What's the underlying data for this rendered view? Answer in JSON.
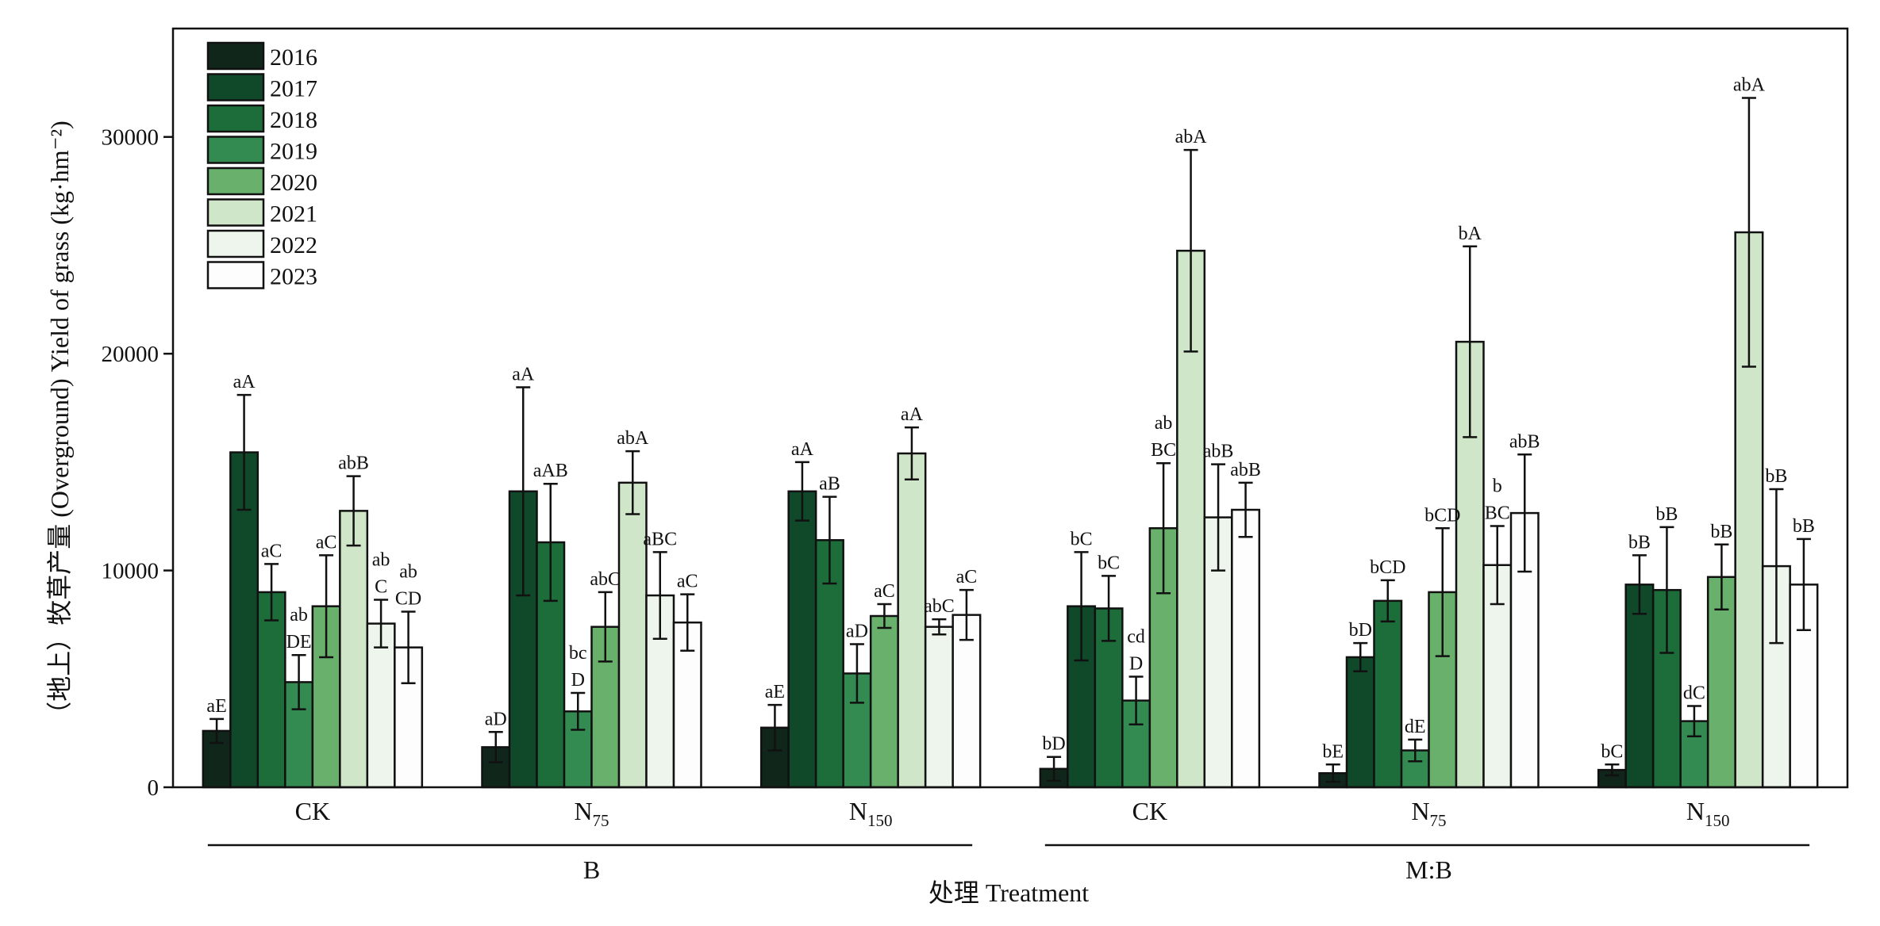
{
  "chart_data": {
    "type": "bar",
    "ylabel": "（地上）牧草产量 (Overground) Yield of grass (kg·hm⁻²)",
    "xlabel": "处理 Treatment",
    "ylim": [
      0,
      35000
    ],
    "yticks": [
      0,
      10000,
      20000,
      30000
    ],
    "grid": false,
    "legend_position": "top-left",
    "categories": [
      {
        "main": "CK",
        "sub": ""
      },
      {
        "main": "N",
        "sub": "75"
      },
      {
        "main": "N",
        "sub": "150"
      },
      {
        "main": "CK",
        "sub": ""
      },
      {
        "main": "N",
        "sub": "75"
      },
      {
        "main": "N",
        "sub": "150"
      }
    ],
    "groups": [
      {
        "label": "B",
        "from": 0,
        "to": 2
      },
      {
        "label": "M:B",
        "from": 3,
        "to": 5
      }
    ],
    "series": [
      {
        "name": "2016",
        "color": "#11261a",
        "values": [
          2600,
          1850,
          2750,
          850,
          650,
          800
        ],
        "errors": [
          550,
          700,
          1050,
          550,
          400,
          250
        ],
        "labels": [
          [
            "aE"
          ],
          [
            "aD"
          ],
          [
            "aE"
          ],
          [
            "bD"
          ],
          [
            "bE"
          ],
          [
            "bC"
          ]
        ]
      },
      {
        "name": "2017",
        "color": "#10482a",
        "values": [
          15450,
          13650,
          13650,
          8350,
          6000,
          9350
        ],
        "errors": [
          2650,
          4800,
          1350,
          2500,
          650,
          1350
        ],
        "labels": [
          [
            "aA"
          ],
          [
            "aA"
          ],
          [
            "aA"
          ],
          [
            "bC"
          ],
          [
            "bD"
          ],
          [
            "bB"
          ]
        ]
      },
      {
        "name": "2018",
        "color": "#1d6d3b",
        "values": [
          9000,
          11300,
          11400,
          8250,
          8600,
          9100
        ],
        "errors": [
          1300,
          2700,
          2000,
          1500,
          950,
          2900
        ],
        "labels": [
          [
            "aC"
          ],
          [
            "aAB"
          ],
          [
            "aB"
          ],
          [
            "bC"
          ],
          [
            "bCD"
          ],
          [
            "bB"
          ]
        ]
      },
      {
        "name": "2019",
        "color": "#338b52",
        "values": [
          4850,
          3500,
          5250,
          4000,
          1700,
          3050
        ],
        "errors": [
          1250,
          850,
          1350,
          1100,
          500,
          700
        ],
        "labels": [
          [
            "ab",
            "DE"
          ],
          [
            "bc",
            "D"
          ],
          [
            "aD"
          ],
          [
            "cd",
            "D"
          ],
          [
            "dE"
          ],
          [
            "dC"
          ]
        ]
      },
      {
        "name": "2020",
        "color": "#69b06c",
        "values": [
          8350,
          7400,
          7900,
          11950,
          9000,
          9700
        ],
        "errors": [
          2350,
          1600,
          550,
          3000,
          2950,
          1500
        ],
        "labels": [
          [
            "aC"
          ],
          [
            "abC"
          ],
          [
            "aC"
          ],
          [
            "ab",
            "BC"
          ],
          [
            "bCD"
          ],
          [
            "bB"
          ]
        ]
      },
      {
        "name": "2021",
        "color": "#cfe6c8",
        "values": [
          12750,
          14050,
          15400,
          24750,
          20550,
          25600
        ],
        "errors": [
          1600,
          1450,
          1200,
          4650,
          4400,
          6200
        ],
        "labels": [
          [
            "abB"
          ],
          [
            "abA"
          ],
          [
            "aA"
          ],
          [
            "abA"
          ],
          [
            "bA"
          ],
          [
            "abA"
          ]
        ]
      },
      {
        "name": "2022",
        "color": "#eef5ec",
        "values": [
          7550,
          8850,
          7400,
          12450,
          10250,
          10200
        ],
        "errors": [
          1100,
          2000,
          350,
          2450,
          1800,
          3550
        ],
        "labels": [
          [
            "ab",
            "C"
          ],
          [
            "aBC"
          ],
          [
            "abC"
          ],
          [
            "abB"
          ],
          [
            "b",
            "BC"
          ],
          [
            "bB"
          ]
        ]
      },
      {
        "name": "2023",
        "color": "#fdfdfd",
        "values": [
          6450,
          7600,
          7950,
          12800,
          12650,
          9350
        ],
        "errors": [
          1650,
          1300,
          1150,
          1250,
          2700,
          2100
        ],
        "labels": [
          [
            "ab",
            "CD"
          ],
          [
            "aC"
          ],
          [
            "aC"
          ],
          [
            "abB"
          ],
          [
            "abB"
          ],
          [
            "bB"
          ]
        ]
      }
    ]
  }
}
